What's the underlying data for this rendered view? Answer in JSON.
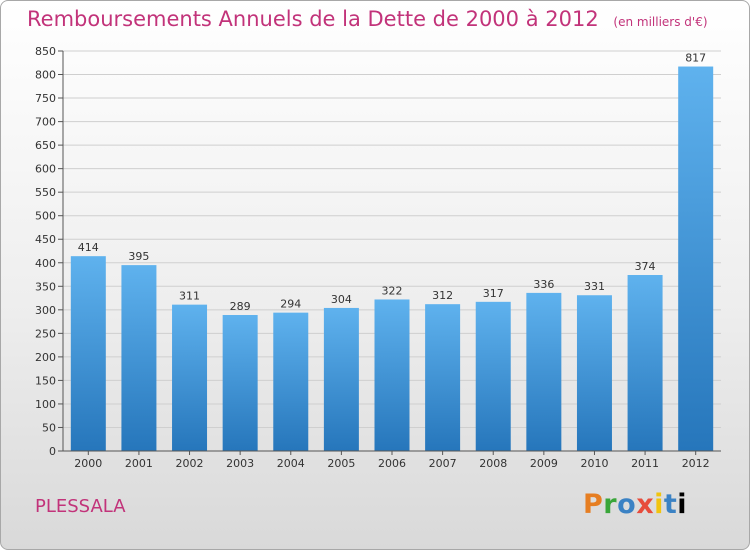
{
  "chart_data": {
    "type": "bar",
    "title": "Remboursements Annuels de la Dette de 2000 à 2012",
    "subtitle": "(en milliers d'€)",
    "categories": [
      "2000",
      "2001",
      "2002",
      "2003",
      "2004",
      "2005",
      "2006",
      "2007",
      "2008",
      "2009",
      "2010",
      "2011",
      "2012"
    ],
    "values": [
      414,
      395,
      311,
      289,
      294,
      304,
      322,
      312,
      317,
      336,
      331,
      374,
      817
    ],
    "ylim": [
      0,
      850
    ],
    "yticks": [
      0,
      50,
      100,
      150,
      200,
      250,
      300,
      350,
      400,
      450,
      500,
      550,
      600,
      650,
      700,
      750,
      800,
      850
    ],
    "grid": true,
    "bar_color": "#3a8fd6"
  },
  "footer": {
    "commune": "PLESSALA",
    "logo": [
      "P",
      "r",
      "o",
      "x",
      "i",
      "t",
      "i"
    ]
  }
}
